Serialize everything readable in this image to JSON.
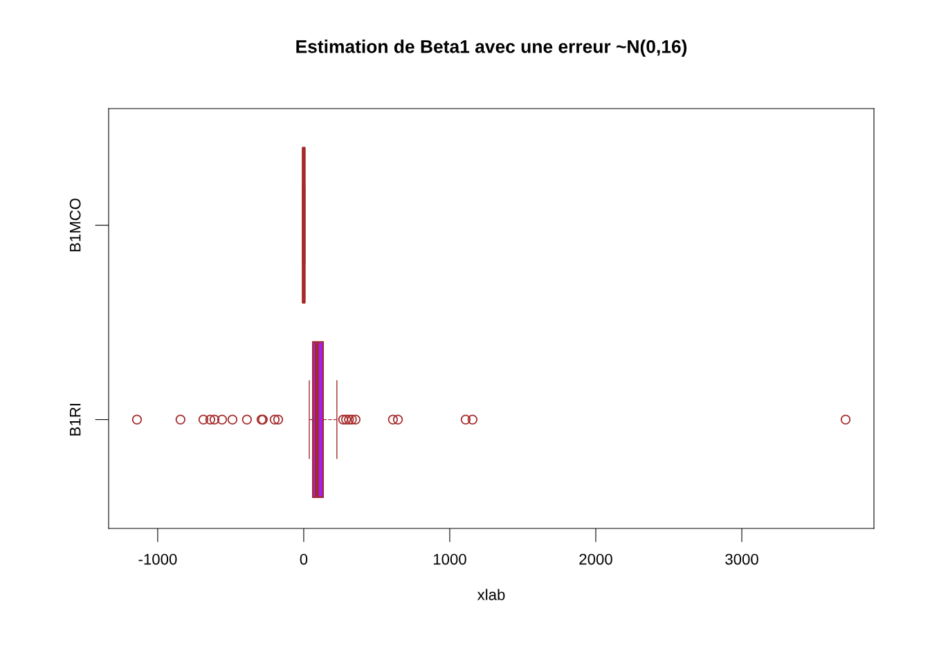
{
  "chart_data": {
    "type": "box",
    "title": "Estimation de Beta1 avec une erreur ~N(0,16)",
    "xlabel": "xlab",
    "orientation": "horizontal",
    "categories": [
      "B1MCO",
      "B1RI"
    ],
    "series": [
      {
        "color": "#a020f0",
        "boxes": [
          {
            "low": -8,
            "q1": -5,
            "median": 0,
            "q3": 5,
            "high": 8
          },
          {
            "low": 38,
            "q1": 62,
            "median": 90,
            "q3": 133,
            "high": 227,
            "outliers": [
              -1142,
              -844,
              -687,
              -640,
              -611,
              -559,
              -488,
              -389,
              -289,
              -280,
              -199,
              -175,
              270,
              290,
              310,
              330,
              355,
              611,
              645,
              1109,
              1156,
              3711
            ]
          }
        ]
      }
    ],
    "xlim": [
      -1336,
      3905
    ],
    "xticks": [
      -1000,
      0,
      1000,
      2000,
      3000
    ],
    "grid": false,
    "line_style": "dashed",
    "marker": "circle"
  }
}
